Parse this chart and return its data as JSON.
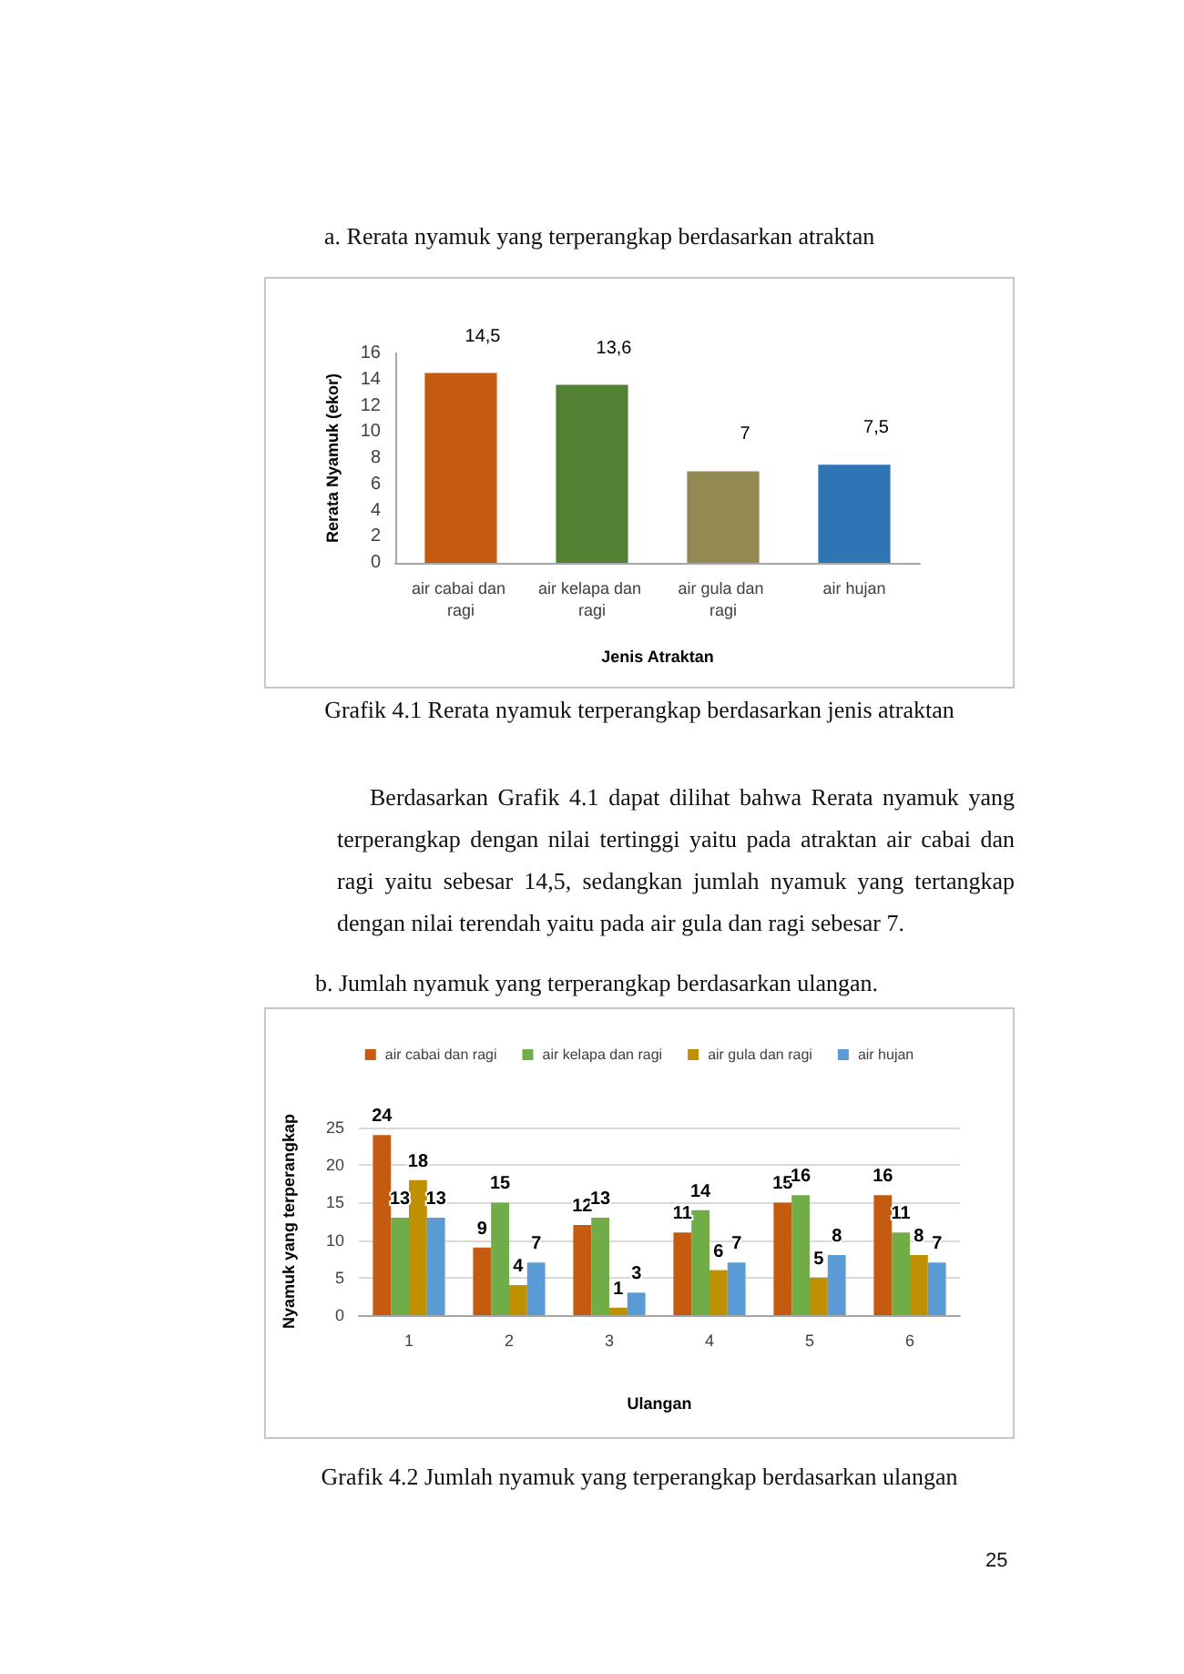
{
  "chart_data": [
    {
      "type": "bar",
      "title": "a. Rerata nyamuk yang terperangkap berdasarkan atraktan",
      "xlabel": "Jenis Atraktan",
      "ylabel": "Rerata Nyamuk (ekor)",
      "categories": [
        "air cabai dan ragi",
        "air kelapa dan ragi",
        "air gula dan ragi",
        "air hujan"
      ],
      "values": [
        14.5,
        13.6,
        7,
        7.5
      ],
      "colors": [
        "#c55a11",
        "#548235",
        "#938953",
        "#2e75b6"
      ],
      "value_labels": [
        "14,5",
        "13,6",
        "7",
        "7,5"
      ],
      "ylim": [
        0,
        16
      ],
      "yticks": [
        0,
        2,
        4,
        6,
        8,
        10,
        12,
        14,
        16
      ],
      "annotations": [
        "Grafik 4.1 Rerata nyamuk terperangkap berdasarkan jenis atraktan",
        "Berdasarkan Grafik 4.1 dapat dilihat bahwa Rerata nyamuk yang terperangkap dengan nilai tertinggi yaitu pada atraktan air cabai dan ragi yaitu sebesar 14,5, sedangkan jumlah nyamuk yang tertangkap dengan nilai terendah yaitu pada air gula dan ragi sebesar 7."
      ]
    },
    {
      "type": "bar",
      "title": "b. Jumlah nyamuk yang terperangkap berdasarkan ulangan.",
      "xlabel": "Ulangan",
      "ylabel": "Nyamuk yang terperangkap",
      "categories": [
        "1",
        "2",
        "3",
        "4",
        "5",
        "6"
      ],
      "series": [
        {
          "name": "air cabai dan ragi",
          "color": "#c55a11",
          "values": [
            24,
            9,
            12,
            11,
            15,
            16
          ]
        },
        {
          "name": "air kelapa dan ragi",
          "color": "#70ad47",
          "values": [
            13,
            15,
            13,
            14,
            16,
            11
          ]
        },
        {
          "name": "air gula dan ragi",
          "color": "#bf9000",
          "values": [
            18,
            4,
            1,
            6,
            5,
            8
          ]
        },
        {
          "name": "air hujan",
          "color": "#5b9bd5",
          "values": [
            13,
            7,
            3,
            7,
            8,
            7
          ]
        }
      ],
      "ylim": [
        0,
        25
      ],
      "yticks": [
        0,
        5,
        10,
        15,
        20,
        25
      ],
      "grid": "y",
      "legend": "top",
      "data_labels": true,
      "annotations": [
        "Grafik 4.2 Jumlah nyamuk yang terperangkap berdasarkan ulangan",
        "25"
      ]
    }
  ]
}
